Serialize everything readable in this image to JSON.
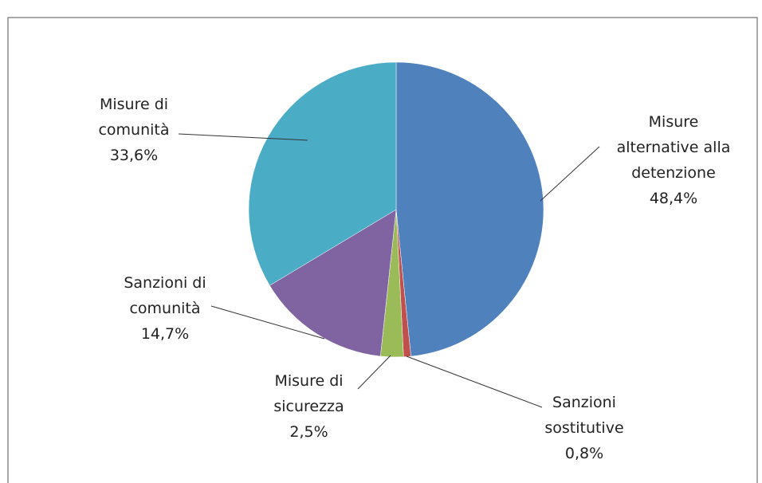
{
  "chart_data": {
    "type": "pie",
    "categories": [
      "Misure alternative alla detenzione",
      "Sanzioni sostitutive",
      "Misure di sicurezza",
      "Sanzioni di comunità",
      "Misure di comunità"
    ],
    "values": [
      48.4,
      0.8,
      2.5,
      14.7,
      33.6
    ],
    "value_labels": [
      "48,4%",
      "0,8%",
      "2,5%",
      "14,7%",
      "33,6%"
    ],
    "colors": [
      "#4f81bd",
      "#c0504d",
      "#9bbb59",
      "#8064a2",
      "#4bacc6"
    ]
  }
}
